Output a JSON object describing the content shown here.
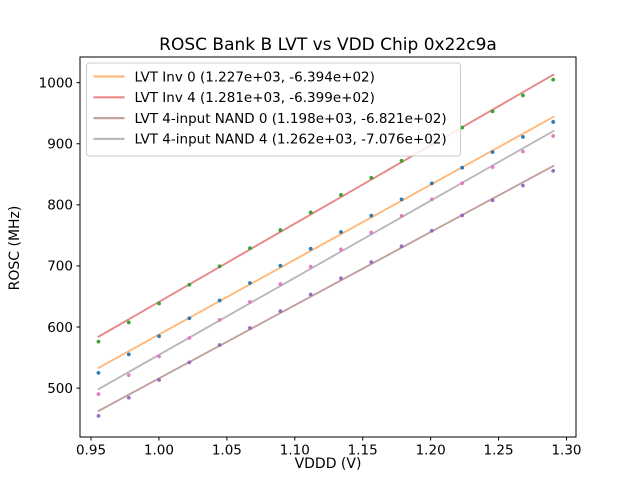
{
  "figure": {
    "background": "#ffffff"
  },
  "chart_data": {
    "type": "scatter",
    "title": "ROSC Bank B LVT vs VDD Chip 0x22c9a",
    "xlabel": "VDDD (V)",
    "ylabel": "ROSC (MHz)",
    "xlim": [
      0.9419,
      1.307
    ],
    "ylim": [
      420,
      1042
    ],
    "grid": false,
    "legend_position": "upper left",
    "xticks": {
      "values": [
        0.95,
        1.0,
        1.05,
        1.1,
        1.15,
        1.2,
        1.25,
        1.3
      ],
      "labels": [
        "0.95",
        "1.00",
        "1.05",
        "1.10",
        "1.15",
        "1.20",
        "1.25",
        "1.30"
      ]
    },
    "yticks": {
      "values": [
        500,
        600,
        700,
        800,
        900,
        1000
      ],
      "labels": [
        "500",
        "600",
        "700",
        "800",
        "900",
        "1000"
      ]
    },
    "x": [
      0.9555,
      0.9778,
      1.0001,
      1.0224,
      1.0447,
      1.067,
      1.0894,
      1.1117,
      1.134,
      1.1563,
      1.1786,
      1.2009,
      1.2232,
      1.2456,
      1.2679,
      1.2902
    ],
    "fit_x_range": [
      0.9555,
      1.2905
    ],
    "line_opacity": 0.55,
    "scatter_opacity": 0.95,
    "series": [
      {
        "name": "LVT Inv 0 (1.227e+03, -6.394e+02)",
        "slope": 1227.0,
        "intercept": -639.4,
        "scatter_color": "#1f77b4",
        "line_color": "#ff7f0e",
        "values": [
          525.0,
          555.2,
          585.0,
          614.4,
          643.4,
          672.0,
          700.3,
          728.1,
          755.5,
          782.4,
          809.0,
          835.1,
          860.8,
          886.3,
          911.2,
          935.7
        ]
      },
      {
        "name": "LVT Inv 4 (1.281e+03, -6.399e+02)",
        "slope": 1281.0,
        "intercept": -639.9,
        "scatter_color": "#2ca02c",
        "line_color": "#d62728",
        "values": [
          576.1,
          607.5,
          638.5,
          669.2,
          699.4,
          729.1,
          758.7,
          787.6,
          816.2,
          844.4,
          872.1,
          899.5,
          926.4,
          953.0,
          979.1,
          1004.9
        ]
      },
      {
        "name": "LVT 4-input NAND 0 (1.198e+03, -6.821e+02)",
        "slope": 1198.0,
        "intercept": -682.1,
        "scatter_color": "#9467bd",
        "line_color": "#8c564b",
        "values": [
          454.6,
          484.2,
          513.3,
          542.1,
          570.5,
          598.4,
          626.0,
          653.2,
          679.9,
          706.2,
          732.1,
          757.6,
          782.7,
          807.5,
          831.7,
          855.6
        ]
      },
      {
        "name": "LVT 4-input NAND 4 (1.262e+03, -7.076e+02)",
        "slope": 1262.0,
        "intercept": -707.6,
        "scatter_color": "#e377c2",
        "line_color": "#7f7f7f",
        "values": [
          490.2,
          521.2,
          551.9,
          582.0,
          611.8,
          641.2,
          670.3,
          698.8,
          727.0,
          754.7,
          782.0,
          808.9,
          835.4,
          861.7,
          887.3,
          912.6
        ]
      }
    ],
    "style": {
      "spine_color": "#000000",
      "tick_color": "#000000",
      "tick_label_color": "#000000",
      "legend_edge_color": "#cccccc",
      "legend_face_color": "#ffffff"
    }
  }
}
